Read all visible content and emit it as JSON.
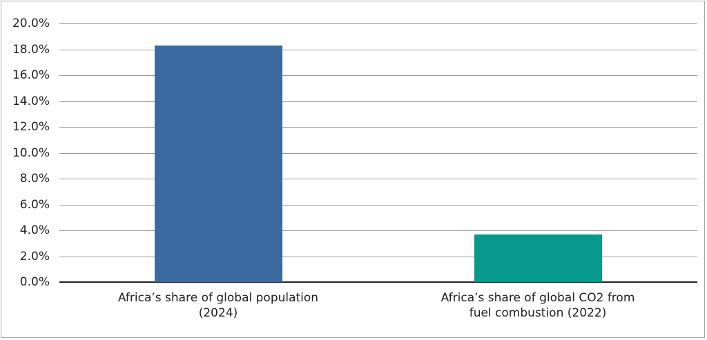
{
  "chart_data": {
    "type": "bar",
    "title": "",
    "xlabel": "",
    "ylabel": "",
    "categories": [
      "Africa’s share of global population (2024)",
      "Africa’s share of global CO2 from fuel combustion (2022)"
    ],
    "category_lines": [
      [
        "Africa’s share of global population",
        "(2024)"
      ],
      [
        "Africa’s share of global CO2 from",
        "fuel combustion (2022)"
      ]
    ],
    "values": [
      18.3,
      3.7
    ],
    "colors": [
      "#3a6a9f",
      "#07998b"
    ],
    "ylim": [
      0,
      20
    ],
    "yticks": [
      "0.0%",
      "2.0%",
      "4.0%",
      "6.0%",
      "8.0%",
      "10.0%",
      "12.0%",
      "14.0%",
      "16.0%",
      "18.0%",
      "20.0%"
    ],
    "grid": true,
    "legend": null
  }
}
